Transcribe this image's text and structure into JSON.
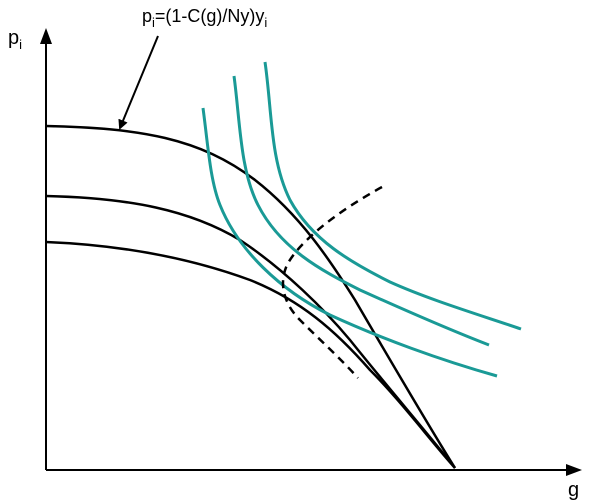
{
  "axes": {
    "y_label": "p",
    "y_label_subscript": "i",
    "x_label": "g"
  },
  "equation": {
    "main": "p",
    "sub1": "i",
    "mid": "=(1-C(g)/Ny)y",
    "sub2": "i"
  },
  "colors": {
    "axis": "#000000",
    "budget_curves": "#000000",
    "indifference_curves": "#1a9a96",
    "expansion_path": "#000000"
  },
  "diagram": {
    "budget_curve_count": 3,
    "indifference_curve_count": 3,
    "expansion_path_style": "dashed"
  }
}
